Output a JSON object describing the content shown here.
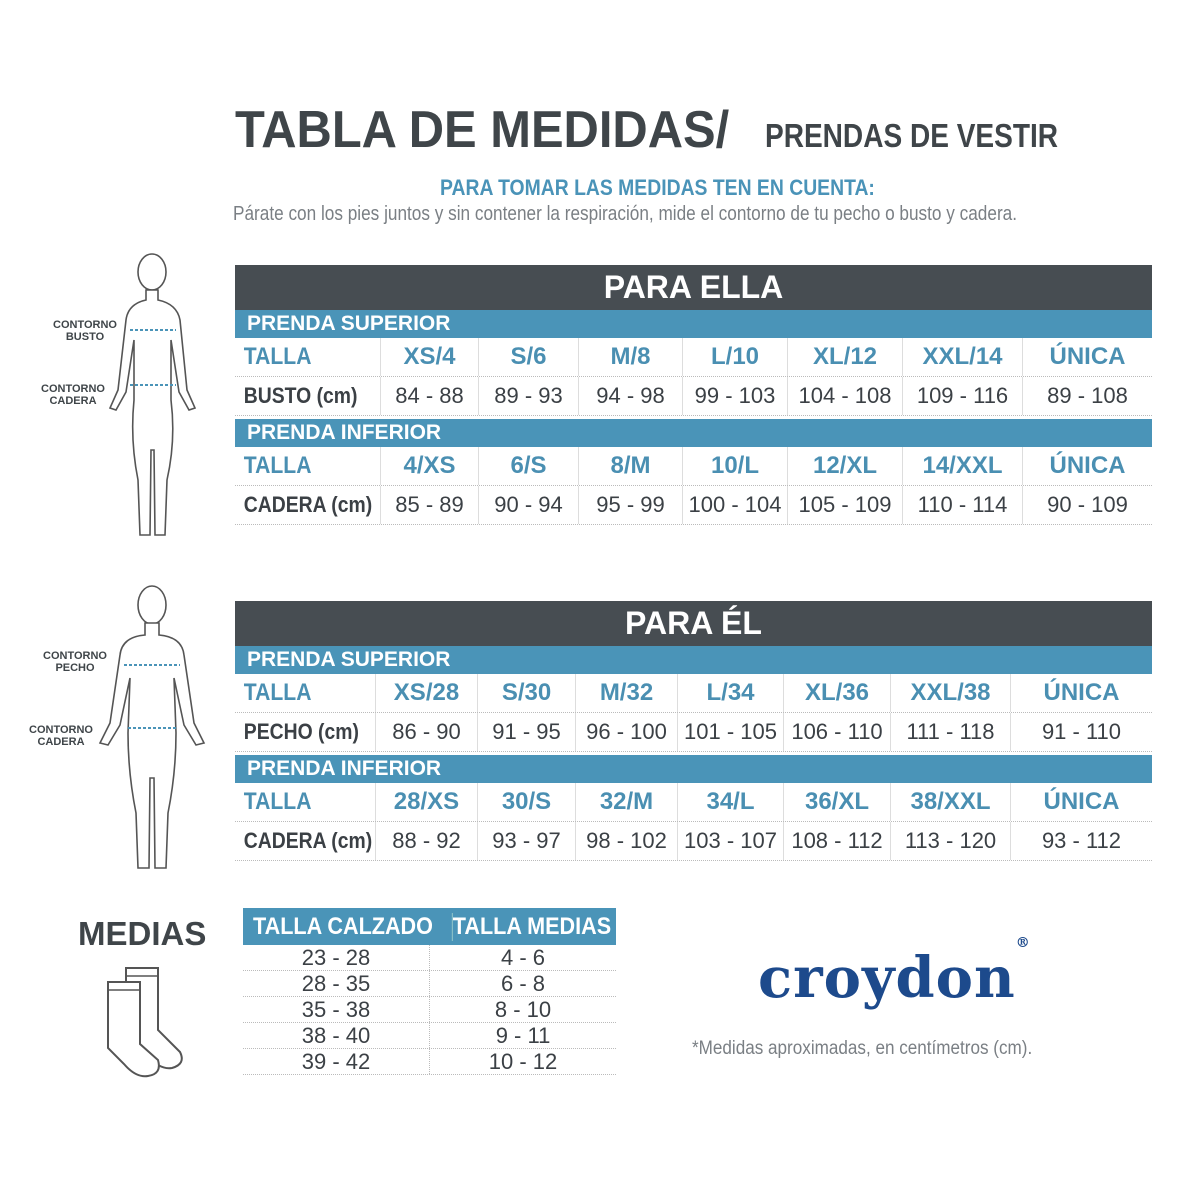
{
  "header": {
    "title": "TABLA DE MEDIDAS/",
    "subtitle": "PRENDAS DE VESTIR",
    "instructions_heading": "PARA TOMAR LAS MEDIDAS TEN EN CUENTA:",
    "instructions_text": "Párate con los pies juntos y sin contener la respiración, mide el contorno de tu pecho o busto y cadera."
  },
  "colors": {
    "dark_header": "#474d52",
    "accent_blue": "#4a94b8",
    "brand_navy": "#1d4a8c"
  },
  "figures": {
    "woman": {
      "labels": [
        "CONTORNO BUSTO",
        "CONTORNO CADERA"
      ]
    },
    "man": {
      "labels": [
        "CONTORNO PECHO",
        "CONTORNO CADERA"
      ]
    }
  },
  "tables": [
    {
      "title": "PARA ELLA",
      "sections": [
        {
          "name": "PRENDA SUPERIOR",
          "size_label": "TALLA",
          "sizes": [
            "XS/4",
            "S/6",
            "M/8",
            "L/10",
            "XL/12",
            "XXL/14",
            "ÚNICA"
          ],
          "measure_label": "BUSTO (cm)",
          "values": [
            "84 - 88",
            "89 - 93",
            "94 - 98",
            "99 - 103",
            "104 - 108",
            "109 - 116",
            "89 - 108"
          ]
        },
        {
          "name": "PRENDA INFERIOR",
          "size_label": "TALLA",
          "sizes": [
            "4/XS",
            "6/S",
            "8/M",
            "10/L",
            "12/XL",
            "14/XXL",
            "ÚNICA"
          ],
          "measure_label": "CADERA (cm)",
          "values": [
            "85 - 89",
            "90 - 94",
            "95 - 99",
            "100 - 104",
            "105 - 109",
            "110 - 114",
            "90 - 109"
          ]
        }
      ]
    },
    {
      "title": "PARA ÉL",
      "sections": [
        {
          "name": "PRENDA SUPERIOR",
          "size_label": "TALLA",
          "sizes": [
            "XS/28",
            "S/30",
            "M/32",
            "L/34",
            "XL/36",
            "XXL/38",
            "ÚNICA"
          ],
          "measure_label": "PECHO (cm)",
          "values": [
            "86 - 90",
            "91 - 95",
            "96 - 100",
            "101 - 105",
            "106 - 110",
            "111 - 118",
            "91 - 110"
          ]
        },
        {
          "name": "PRENDA INFERIOR",
          "size_label": "TALLA",
          "sizes": [
            "28/XS",
            "30/S",
            "32/M",
            "34/L",
            "36/XL",
            "38/XXL",
            "ÚNICA"
          ],
          "measure_label": "CADERA (cm)",
          "values": [
            "88 - 92",
            "93 - 97",
            "98 - 102",
            "103 - 107",
            "108 - 112",
            "113 - 120",
            "93 - 112"
          ]
        }
      ]
    }
  ],
  "medias": {
    "title": "MEDIAS",
    "columns": [
      "TALLA CALZADO",
      "TALLA MEDIAS"
    ],
    "rows": [
      [
        "23 - 28",
        "4 - 6"
      ],
      [
        "28 - 35",
        "6 - 8"
      ],
      [
        "35 - 38",
        "8 - 10"
      ],
      [
        "38 - 40",
        "9 - 11"
      ],
      [
        "39 - 42",
        "10 - 12"
      ]
    ]
  },
  "brand": {
    "logo": "croydon",
    "registered": "®"
  },
  "footnote": "*Medidas aproximadas, en centímetros (cm)."
}
